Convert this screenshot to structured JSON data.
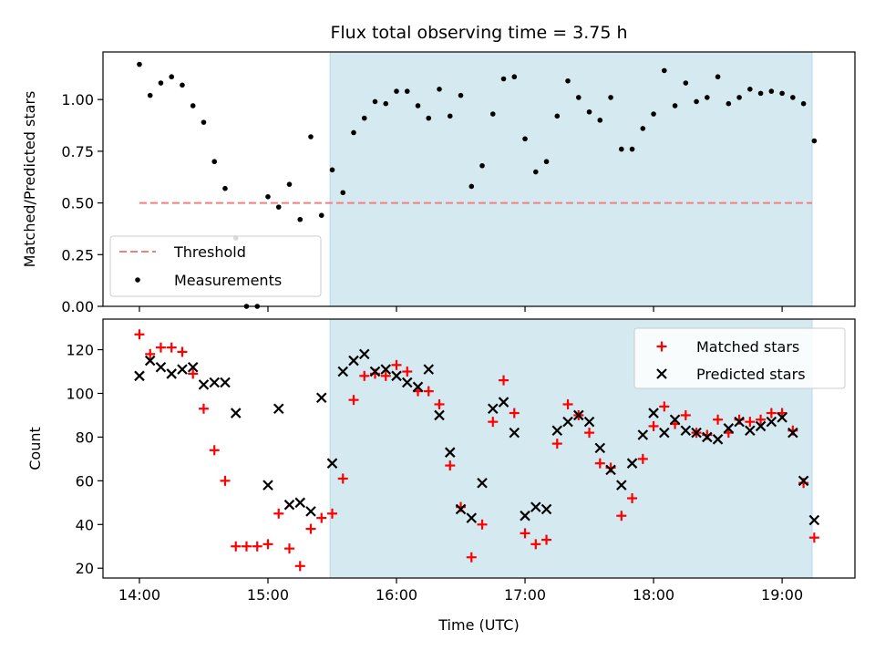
{
  "chart_data": [
    {
      "type": "scatter",
      "title": "Flux total observing time = 3.75 h",
      "xlabel": "",
      "ylabel": "Matched/Predicted stars",
      "xlim": [
        "13:43",
        "19:34"
      ],
      "ylim": [
        0,
        1.23
      ],
      "x_ticks": [
        "14:00",
        "15:00",
        "16:00",
        "17:00",
        "18:00",
        "19:00"
      ],
      "y_ticks": [
        "0.00",
        "0.25",
        "0.50",
        "0.75",
        "1.00"
      ],
      "shaded_region": {
        "x_start": "15:29",
        "x_end": "19:14",
        "color": "#d4eaf0"
      },
      "legend": {
        "position": "lower-left",
        "entries": [
          "Threshold",
          "Measurements"
        ]
      },
      "series": [
        {
          "name": "Threshold",
          "style": "dashed-line",
          "color": "#f08080",
          "points": [
            {
              "x": "14:00",
              "y": 0.5
            },
            {
              "x": "19:14",
              "y": 0.5
            }
          ]
        },
        {
          "name": "Measurements",
          "style": "dot",
          "color": "#000000",
          "points": [
            {
              "x": "14:00",
              "y": 1.17
            },
            {
              "x": "14:05",
              "y": 1.02
            },
            {
              "x": "14:10",
              "y": 1.08
            },
            {
              "x": "14:15",
              "y": 1.11
            },
            {
              "x": "14:20",
              "y": 1.07
            },
            {
              "x": "14:25",
              "y": 0.97
            },
            {
              "x": "14:30",
              "y": 0.89
            },
            {
              "x": "14:35",
              "y": 0.7
            },
            {
              "x": "14:40",
              "y": 0.57
            },
            {
              "x": "14:45",
              "y": 0.33
            },
            {
              "x": "14:50",
              "y": 0.0
            },
            {
              "x": "14:55",
              "y": 0.0
            },
            {
              "x": "15:00",
              "y": 0.53
            },
            {
              "x": "15:05",
              "y": 0.48
            },
            {
              "x": "15:10",
              "y": 0.59
            },
            {
              "x": "15:15",
              "y": 0.42
            },
            {
              "x": "15:20",
              "y": 0.82
            },
            {
              "x": "15:25",
              "y": 0.44
            },
            {
              "x": "15:30",
              "y": 0.66
            },
            {
              "x": "15:35",
              "y": 0.55
            },
            {
              "x": "15:40",
              "y": 0.84
            },
            {
              "x": "15:45",
              "y": 0.91
            },
            {
              "x": "15:50",
              "y": 0.99
            },
            {
              "x": "15:55",
              "y": 0.98
            },
            {
              "x": "16:00",
              "y": 1.04
            },
            {
              "x": "16:05",
              "y": 1.04
            },
            {
              "x": "16:10",
              "y": 0.97
            },
            {
              "x": "16:15",
              "y": 0.91
            },
            {
              "x": "16:20",
              "y": 1.05
            },
            {
              "x": "16:25",
              "y": 0.92
            },
            {
              "x": "16:30",
              "y": 1.02
            },
            {
              "x": "16:35",
              "y": 0.58
            },
            {
              "x": "16:40",
              "y": 0.68
            },
            {
              "x": "16:45",
              "y": 0.93
            },
            {
              "x": "16:50",
              "y": 1.1
            },
            {
              "x": "16:55",
              "y": 1.11
            },
            {
              "x": "17:00",
              "y": 0.81
            },
            {
              "x": "17:05",
              "y": 0.65
            },
            {
              "x": "17:10",
              "y": 0.7
            },
            {
              "x": "17:15",
              "y": 0.92
            },
            {
              "x": "17:20",
              "y": 1.09
            },
            {
              "x": "17:25",
              "y": 1.01
            },
            {
              "x": "17:30",
              "y": 0.94
            },
            {
              "x": "17:35",
              "y": 0.9
            },
            {
              "x": "17:40",
              "y": 1.01
            },
            {
              "x": "17:45",
              "y": 0.76
            },
            {
              "x": "17:50",
              "y": 0.76
            },
            {
              "x": "17:55",
              "y": 0.86
            },
            {
              "x": "18:00",
              "y": 0.93
            },
            {
              "x": "18:05",
              "y": 1.14
            },
            {
              "x": "18:10",
              "y": 0.97
            },
            {
              "x": "18:15",
              "y": 1.08
            },
            {
              "x": "18:20",
              "y": 0.99
            },
            {
              "x": "18:25",
              "y": 1.01
            },
            {
              "x": "18:30",
              "y": 1.11
            },
            {
              "x": "18:35",
              "y": 0.98
            },
            {
              "x": "18:40",
              "y": 1.01
            },
            {
              "x": "18:45",
              "y": 1.05
            },
            {
              "x": "18:50",
              "y": 1.03
            },
            {
              "x": "18:55",
              "y": 1.04
            },
            {
              "x": "19:00",
              "y": 1.03
            },
            {
              "x": "19:05",
              "y": 1.01
            },
            {
              "x": "19:10",
              "y": 0.98
            },
            {
              "x": "19:15",
              "y": 0.8
            }
          ]
        }
      ]
    },
    {
      "type": "scatter",
      "title": "",
      "xlabel": "Time (UTC)",
      "ylabel": "Count",
      "xlim": [
        "13:43",
        "19:34"
      ],
      "ylim": [
        15.5,
        134
      ],
      "x_ticks": [
        "14:00",
        "15:00",
        "16:00",
        "17:00",
        "18:00",
        "19:00"
      ],
      "y_ticks": [
        "20",
        "40",
        "60",
        "80",
        "100",
        "120"
      ],
      "shaded_region": {
        "x_start": "15:29",
        "x_end": "19:14",
        "color": "#d4eaf0"
      },
      "legend": {
        "position": "top-right",
        "entries": [
          "Matched stars",
          "Predicted stars"
        ]
      },
      "series": [
        {
          "name": "Matched stars",
          "style": "plus",
          "color": "#ff0000",
          "points": [
            {
              "x": "14:00",
              "y": 127
            },
            {
              "x": "14:05",
              "y": 118
            },
            {
              "x": "14:10",
              "y": 121
            },
            {
              "x": "14:15",
              "y": 121
            },
            {
              "x": "14:20",
              "y": 119
            },
            {
              "x": "14:25",
              "y": 109
            },
            {
              "x": "14:30",
              "y": 93
            },
            {
              "x": "14:35",
              "y": 74
            },
            {
              "x": "14:40",
              "y": 60
            },
            {
              "x": "14:45",
              "y": 30
            },
            {
              "x": "14:50",
              "y": 30
            },
            {
              "x": "14:55",
              "y": 30
            },
            {
              "x": "15:00",
              "y": 31
            },
            {
              "x": "15:05",
              "y": 45
            },
            {
              "x": "15:10",
              "y": 29
            },
            {
              "x": "15:15",
              "y": 21
            },
            {
              "x": "15:20",
              "y": 38
            },
            {
              "x": "15:25",
              "y": 43
            },
            {
              "x": "15:30",
              "y": 45
            },
            {
              "x": "15:35",
              "y": 61
            },
            {
              "x": "15:40",
              "y": 97
            },
            {
              "x": "15:45",
              "y": 108
            },
            {
              "x": "15:50",
              "y": 109
            },
            {
              "x": "15:55",
              "y": 108
            },
            {
              "x": "16:00",
              "y": 113
            },
            {
              "x": "16:05",
              "y": 110
            },
            {
              "x": "16:10",
              "y": 101
            },
            {
              "x": "16:15",
              "y": 101
            },
            {
              "x": "16:20",
              "y": 95
            },
            {
              "x": "16:25",
              "y": 67
            },
            {
              "x": "16:30",
              "y": 48
            },
            {
              "x": "16:35",
              "y": 25
            },
            {
              "x": "16:40",
              "y": 40
            },
            {
              "x": "16:45",
              "y": 87
            },
            {
              "x": "16:50",
              "y": 106
            },
            {
              "x": "16:55",
              "y": 91
            },
            {
              "x": "17:00",
              "y": 36
            },
            {
              "x": "17:05",
              "y": 31
            },
            {
              "x": "17:10",
              "y": 33
            },
            {
              "x": "17:15",
              "y": 77
            },
            {
              "x": "17:20",
              "y": 95
            },
            {
              "x": "17:25",
              "y": 90
            },
            {
              "x": "17:30",
              "y": 82
            },
            {
              "x": "17:35",
              "y": 68
            },
            {
              "x": "17:40",
              "y": 66
            },
            {
              "x": "17:45",
              "y": 44
            },
            {
              "x": "17:50",
              "y": 52
            },
            {
              "x": "17:55",
              "y": 70
            },
            {
              "x": "18:00",
              "y": 85
            },
            {
              "x": "18:05",
              "y": 94
            },
            {
              "x": "18:10",
              "y": 86
            },
            {
              "x": "18:15",
              "y": 90
            },
            {
              "x": "18:20",
              "y": 82
            },
            {
              "x": "18:25",
              "y": 81
            },
            {
              "x": "18:30",
              "y": 88
            },
            {
              "x": "18:35",
              "y": 82
            },
            {
              "x": "18:40",
              "y": 88
            },
            {
              "x": "18:45",
              "y": 87
            },
            {
              "x": "18:50",
              "y": 88
            },
            {
              "x": "18:55",
              "y": 91
            },
            {
              "x": "19:00",
              "y": 91
            },
            {
              "x": "19:05",
              "y": 83
            },
            {
              "x": "19:10",
              "y": 59
            },
            {
              "x": "19:15",
              "y": 34
            }
          ]
        },
        {
          "name": "Predicted stars",
          "style": "x",
          "color": "#000000",
          "points": [
            {
              "x": "14:00",
              "y": 108
            },
            {
              "x": "14:05",
              "y": 115
            },
            {
              "x": "14:10",
              "y": 112
            },
            {
              "x": "14:15",
              "y": 109
            },
            {
              "x": "14:20",
              "y": 111
            },
            {
              "x": "14:25",
              "y": 112
            },
            {
              "x": "14:30",
              "y": 104
            },
            {
              "x": "14:35",
              "y": 105
            },
            {
              "x": "14:40",
              "y": 105
            },
            {
              "x": "14:45",
              "y": 91
            },
            {
              "x": "15:00",
              "y": 58
            },
            {
              "x": "15:05",
              "y": 93
            },
            {
              "x": "15:10",
              "y": 49
            },
            {
              "x": "15:15",
              "y": 50
            },
            {
              "x": "15:20",
              "y": 46
            },
            {
              "x": "15:25",
              "y": 98
            },
            {
              "x": "15:30",
              "y": 68
            },
            {
              "x": "15:35",
              "y": 110
            },
            {
              "x": "15:40",
              "y": 115
            },
            {
              "x": "15:45",
              "y": 118
            },
            {
              "x": "15:50",
              "y": 110
            },
            {
              "x": "15:55",
              "y": 111
            },
            {
              "x": "16:00",
              "y": 108
            },
            {
              "x": "16:05",
              "y": 105
            },
            {
              "x": "16:10",
              "y": 103
            },
            {
              "x": "16:15",
              "y": 111
            },
            {
              "x": "16:20",
              "y": 90
            },
            {
              "x": "16:25",
              "y": 73
            },
            {
              "x": "16:30",
              "y": 47
            },
            {
              "x": "16:35",
              "y": 43
            },
            {
              "x": "16:40",
              "y": 59
            },
            {
              "x": "16:45",
              "y": 93
            },
            {
              "x": "16:50",
              "y": 96
            },
            {
              "x": "16:55",
              "y": 82
            },
            {
              "x": "17:00",
              "y": 44
            },
            {
              "x": "17:05",
              "y": 48
            },
            {
              "x": "17:10",
              "y": 47
            },
            {
              "x": "17:15",
              "y": 83
            },
            {
              "x": "17:20",
              "y": 87
            },
            {
              "x": "17:25",
              "y": 90
            },
            {
              "x": "17:30",
              "y": 87
            },
            {
              "x": "17:35",
              "y": 75
            },
            {
              "x": "17:40",
              "y": 65
            },
            {
              "x": "17:45",
              "y": 58
            },
            {
              "x": "17:50",
              "y": 68
            },
            {
              "x": "17:55",
              "y": 81
            },
            {
              "x": "18:00",
              "y": 91
            },
            {
              "x": "18:05",
              "y": 82
            },
            {
              "x": "18:10",
              "y": 88
            },
            {
              "x": "18:15",
              "y": 83
            },
            {
              "x": "18:20",
              "y": 82
            },
            {
              "x": "18:25",
              "y": 80
            },
            {
              "x": "18:30",
              "y": 79
            },
            {
              "x": "18:35",
              "y": 84
            },
            {
              "x": "18:40",
              "y": 87
            },
            {
              "x": "18:45",
              "y": 83
            },
            {
              "x": "18:50",
              "y": 85
            },
            {
              "x": "18:55",
              "y": 87
            },
            {
              "x": "19:00",
              "y": 89
            },
            {
              "x": "19:05",
              "y": 82
            },
            {
              "x": "19:10",
              "y": 60
            },
            {
              "x": "19:15",
              "y": 42
            }
          ]
        }
      ]
    }
  ]
}
